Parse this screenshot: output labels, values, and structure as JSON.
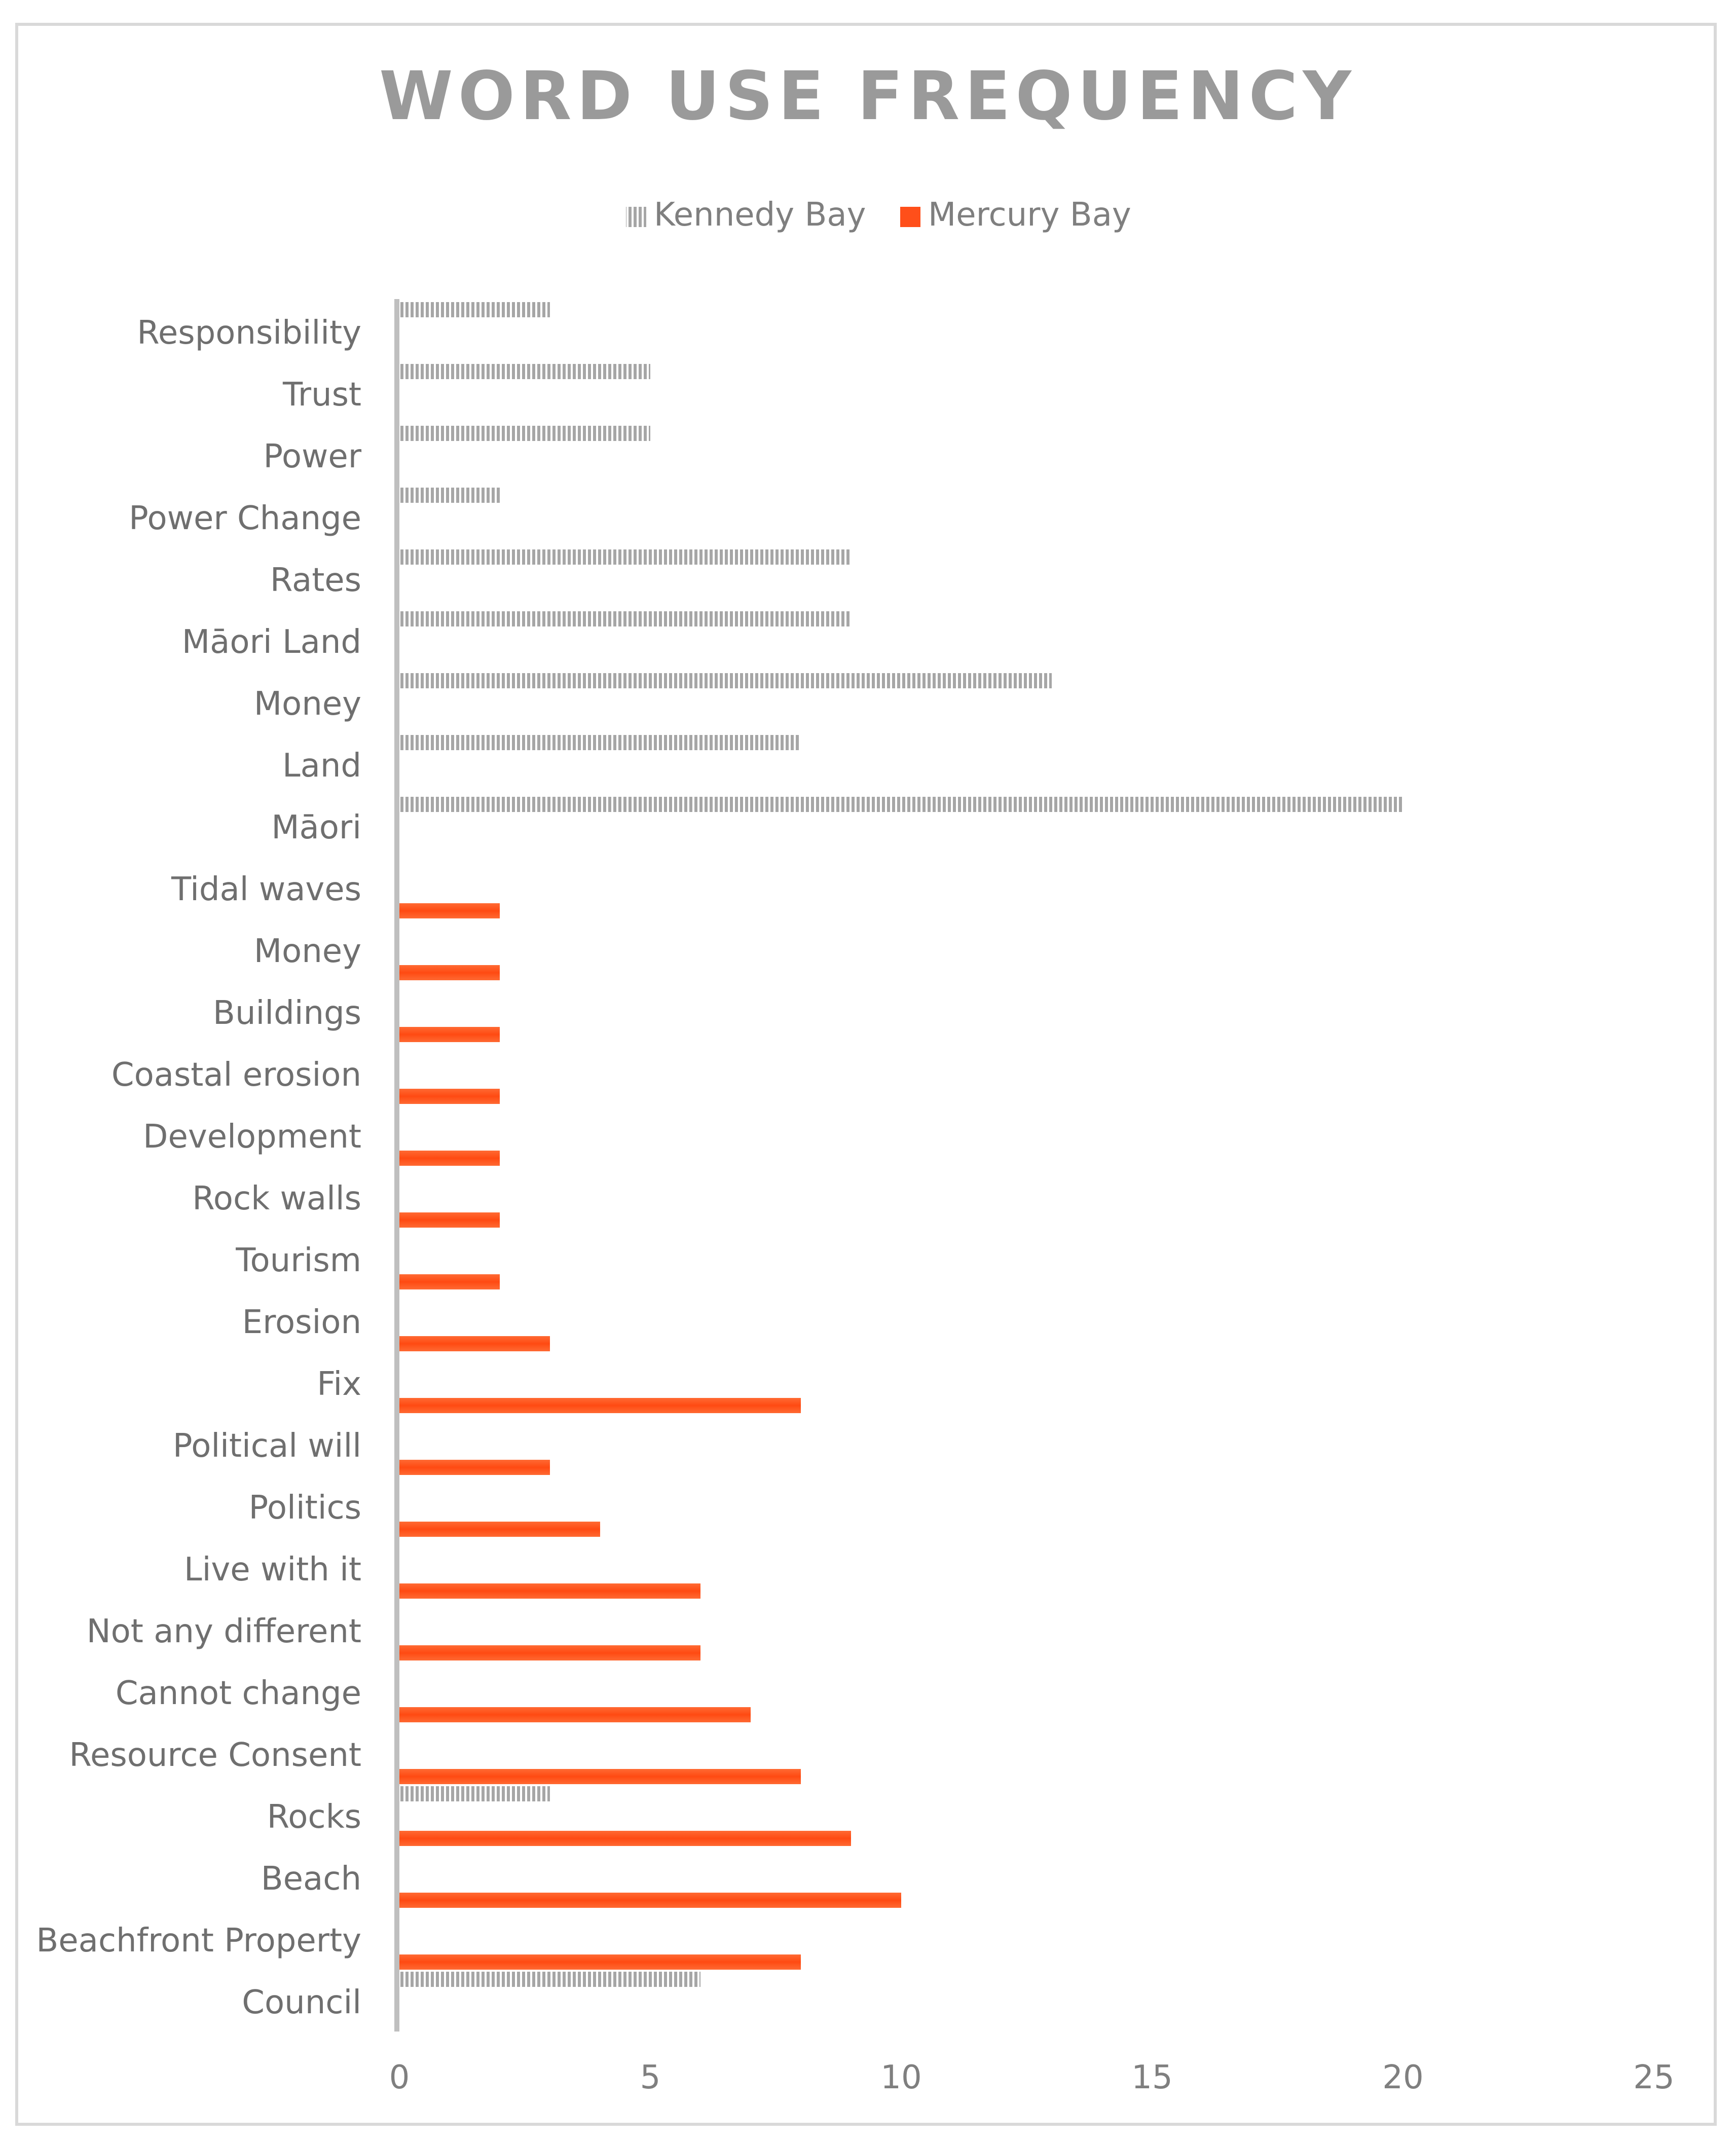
{
  "chart_data": {
    "type": "bar",
    "orientation": "horizontal",
    "title": "WORD USE FREQUENCY",
    "xlabel": "",
    "ylabel": "",
    "xlim": [
      0,
      25
    ],
    "xticks": [
      0,
      5,
      10,
      15,
      20,
      25
    ],
    "grid": false,
    "legend_position": "top-center",
    "categories": [
      "Responsibility",
      "Trust",
      "Power",
      "Power Change",
      "Rates",
      "Māori Land",
      "Money",
      "Land",
      "Māori",
      "Tidal waves",
      "Money",
      "Buildings",
      "Coastal erosion",
      "Development",
      "Rock walls",
      "Tourism",
      "Erosion",
      "Fix",
      "Political will",
      "Politics",
      "Live with it",
      "Not any different",
      "Cannot change",
      "Resource Consent",
      "Rocks",
      "Beach",
      "Beachfront Property",
      "Council"
    ],
    "series": [
      {
        "name": "Kennedy Bay",
        "color": "#a6a6a6",
        "pattern": "vertical-stripes",
        "values": [
          3,
          5,
          5,
          2,
          9,
          9,
          13,
          8,
          20,
          null,
          null,
          null,
          null,
          null,
          null,
          null,
          null,
          null,
          null,
          null,
          null,
          null,
          null,
          null,
          3,
          null,
          null,
          6
        ]
      },
      {
        "name": "Mercury Bay",
        "color": "#ff4f1a",
        "pattern": "solid",
        "values": [
          null,
          null,
          null,
          null,
          null,
          null,
          null,
          null,
          null,
          2,
          2,
          2,
          2,
          2,
          2,
          2,
          3,
          8,
          3,
          4,
          6,
          6,
          7,
          8,
          9,
          10,
          8,
          null
        ]
      }
    ]
  }
}
